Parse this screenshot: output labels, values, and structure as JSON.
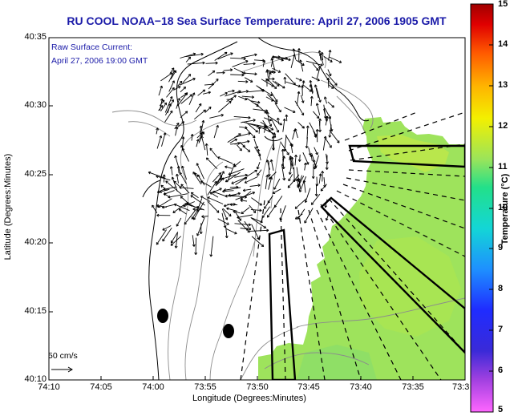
{
  "title": "RU COOL  NOAA−18  Sea Surface Temperature:  April 27, 2006 1905 GMT",
  "legend": {
    "line1": "Raw Surface Current:",
    "line2": "April 27, 2006 19:00 GMT"
  },
  "scale_arrow_label": "50 cm/s",
  "axes": {
    "xlabel": "Longitude (Degrees:Minutes)",
    "ylabel": "Latitude (Degrees:Minutes)",
    "xticks": [
      "74:10",
      "74:05",
      "74:00",
      "73:55",
      "73:50",
      "73:45",
      "73:40",
      "73:35",
      "73:3"
    ],
    "yticks": [
      "40:35",
      "40:30",
      "40:25",
      "40:20",
      "40:15",
      "40:10"
    ]
  },
  "colorbar": {
    "label": "Temperature (°C)",
    "ticks": [
      "15",
      "14",
      "13",
      "12",
      "11",
      "10",
      "9",
      "8",
      "7",
      "6",
      "5"
    ],
    "min": 5,
    "max": 15
  },
  "sst_value_range_c": [
    10.5,
    11.5
  ],
  "colors": {
    "title": "#1a1aa8",
    "land_outline": "#000000",
    "bathymetry": "#8c8c8c",
    "sst_water": "#9be45a"
  }
}
